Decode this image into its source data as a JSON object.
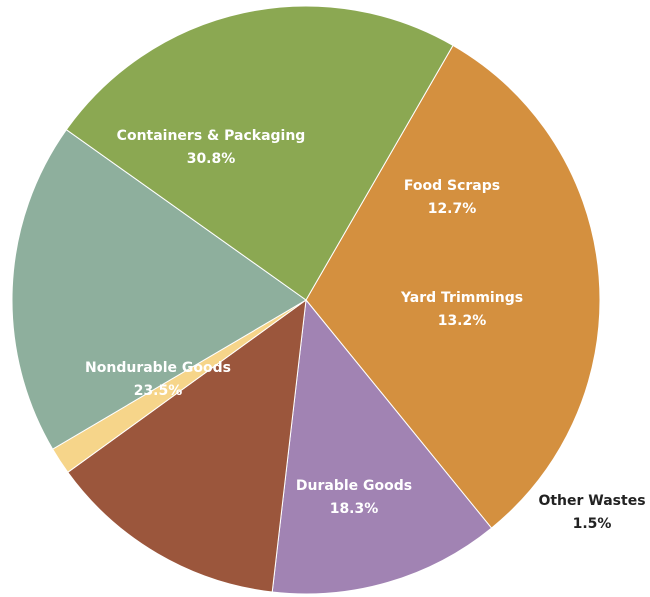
{
  "chart_data": {
    "type": "pie",
    "title": "",
    "slices": [
      {
        "label": "Containers & Packaging",
        "value": 30.8,
        "display": "30.8%",
        "color": "#D4903F",
        "label_color": "#FFFFFF"
      },
      {
        "label": "Food Scraps",
        "value": 12.7,
        "display": "12.7%",
        "color": "#A183B3",
        "label_color": "#FFFFFF"
      },
      {
        "label": "Yard Trimmings",
        "value": 13.2,
        "display": "13.2%",
        "color": "#9B563C",
        "label_color": "#FFFFFF"
      },
      {
        "label": "Other Wastes",
        "value": 1.5,
        "display": "1.5%",
        "color": "#F6D58A",
        "label_color": "#222222"
      },
      {
        "label": "Durable Goods",
        "value": 18.3,
        "display": "18.3%",
        "color": "#8EAF9D",
        "label_color": "#FFFFFF"
      },
      {
        "label": "Nondurable Goods",
        "value": 23.5,
        "display": "23.5%",
        "color": "#8BA852",
        "label_color": "#FFFFFF"
      }
    ]
  }
}
